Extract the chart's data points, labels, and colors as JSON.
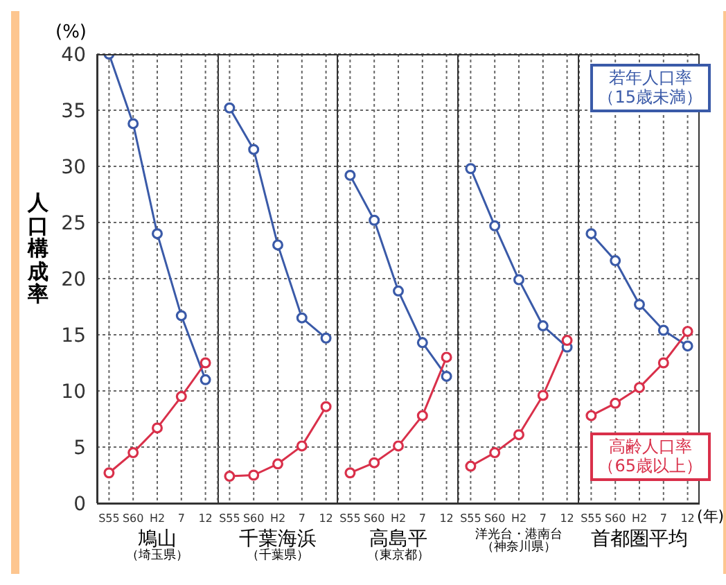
{
  "chart_data": [
    {
      "type": "line",
      "categories": [
        "S55",
        "S60",
        "H2",
        "7",
        "12"
      ],
      "xlabel": "鳩山（埼玉県）",
      "ylabel": "人口構成率",
      "annotations": [
        "(%)"
      ],
      "ylim": [
        0,
        40
      ],
      "yticks": [
        0,
        5,
        10,
        15,
        20,
        25,
        30,
        35,
        40
      ],
      "grid": true,
      "marker": "circle",
      "line_style": "solid",
      "series": [
        {
          "color": "#3a5aa8",
          "values": [
            40,
            33.8,
            24.0,
            16.7,
            11.0
          ]
        },
        {
          "color": "#d9304a",
          "values": [
            2.7,
            4.5,
            6.7,
            9.5,
            12.5
          ]
        }
      ]
    },
    {
      "type": "line",
      "categories": [
        "S55",
        "S60",
        "H2",
        "7",
        "12"
      ],
      "xlabel": "千葉海浜（千葉県）",
      "ylim": [
        0,
        40
      ],
      "tick_labels": "x",
      "grid": true,
      "marker": "circle",
      "line_style": "solid",
      "series": [
        {
          "color": "#3a5aa8",
          "values": [
            35.2,
            31.5,
            23.0,
            16.5,
            14.7
          ]
        },
        {
          "color": "#d9304a",
          "values": [
            2.4,
            2.5,
            3.5,
            5.1,
            8.6
          ]
        }
      ]
    },
    {
      "type": "line",
      "categories": [
        "S55",
        "S60",
        "H2",
        "7",
        "12"
      ],
      "xlabel": "高島平（東京都）",
      "ylim": [
        0,
        40
      ],
      "tick_labels": "x",
      "grid": true,
      "marker": "circle",
      "line_style": "solid",
      "series": [
        {
          "color": "#3a5aa8",
          "values": [
            29.2,
            25.2,
            18.9,
            14.3,
            11.3
          ]
        },
        {
          "color": "#d9304a",
          "values": [
            2.7,
            3.6,
            5.1,
            7.8,
            13.0
          ]
        }
      ]
    },
    {
      "type": "line",
      "categories": [
        "S55",
        "S60",
        "H2",
        "7",
        "12"
      ],
      "xlabel": "洋光台・港南台（神奈川県）",
      "ylim": [
        0,
        40
      ],
      "tick_labels": "x",
      "grid": true,
      "marker": "circle",
      "line_style": "solid",
      "series": [
        {
          "color": "#3a5aa8",
          "values": [
            29.8,
            24.7,
            19.9,
            15.8,
            13.9
          ]
        },
        {
          "color": "#d9304a",
          "values": [
            3.3,
            4.5,
            6.1,
            9.6,
            14.5
          ]
        }
      ]
    },
    {
      "type": "line",
      "categories": [
        "S55",
        "S60",
        "H2",
        "7",
        "12"
      ],
      "xlabel": "首都圏平均",
      "annotations": [
        "(年)"
      ],
      "ylim": [
        0,
        40
      ],
      "tick_labels": "x",
      "grid": true,
      "legend": "right",
      "marker": "circle",
      "line_style": "solid",
      "series": [
        {
          "name": "若年人口率（15歳未満）",
          "color": "#3a5aa8",
          "values": [
            24.0,
            21.6,
            17.7,
            15.4,
            14.0
          ]
        },
        {
          "name": "高齢人口率（65歳以上）",
          "color": "#d9304a",
          "values": [
            7.8,
            8.9,
            10.3,
            12.5,
            15.3
          ]
        }
      ]
    }
  ]
}
